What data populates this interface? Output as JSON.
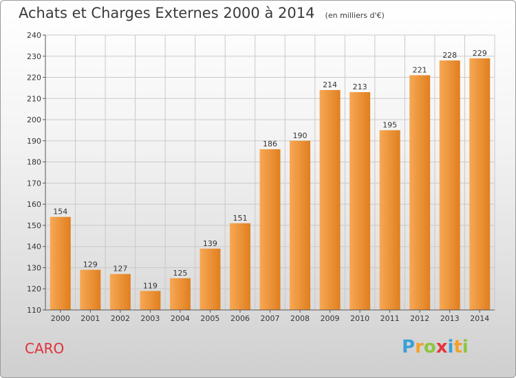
{
  "header": {
    "title": "Achats et Charges Externes 2000 à 2014",
    "unit": "(en milliers d'€)"
  },
  "footer": {
    "commune": "CARO",
    "logo": {
      "letters": [
        "P",
        "r",
        "o",
        "x",
        "i",
        "t",
        "i"
      ],
      "colors": [
        "#3aa0d8",
        "#f2a12a",
        "#8cc63f",
        "#e8343c",
        "#3aa0d8",
        "#f2a12a",
        "#8cc63f"
      ]
    }
  },
  "colors": {
    "bar_light": "#f7a855",
    "bar_dark": "#e07f1f",
    "grid": "#c9c9c9",
    "axis": "#555555"
  },
  "chart_data": {
    "type": "bar",
    "categories": [
      "2000",
      "2001",
      "2002",
      "2003",
      "2004",
      "2005",
      "2006",
      "2007",
      "2008",
      "2009",
      "2010",
      "2011",
      "2012",
      "2013",
      "2014"
    ],
    "values": [
      154,
      129,
      127,
      119,
      125,
      139,
      151,
      186,
      190,
      214,
      213,
      195,
      221,
      228,
      229
    ],
    "ylim": [
      110,
      240
    ],
    "yticks": [
      110,
      120,
      130,
      140,
      150,
      160,
      170,
      180,
      190,
      200,
      210,
      220,
      230,
      240
    ],
    "grid": true,
    "data_labels": true
  }
}
